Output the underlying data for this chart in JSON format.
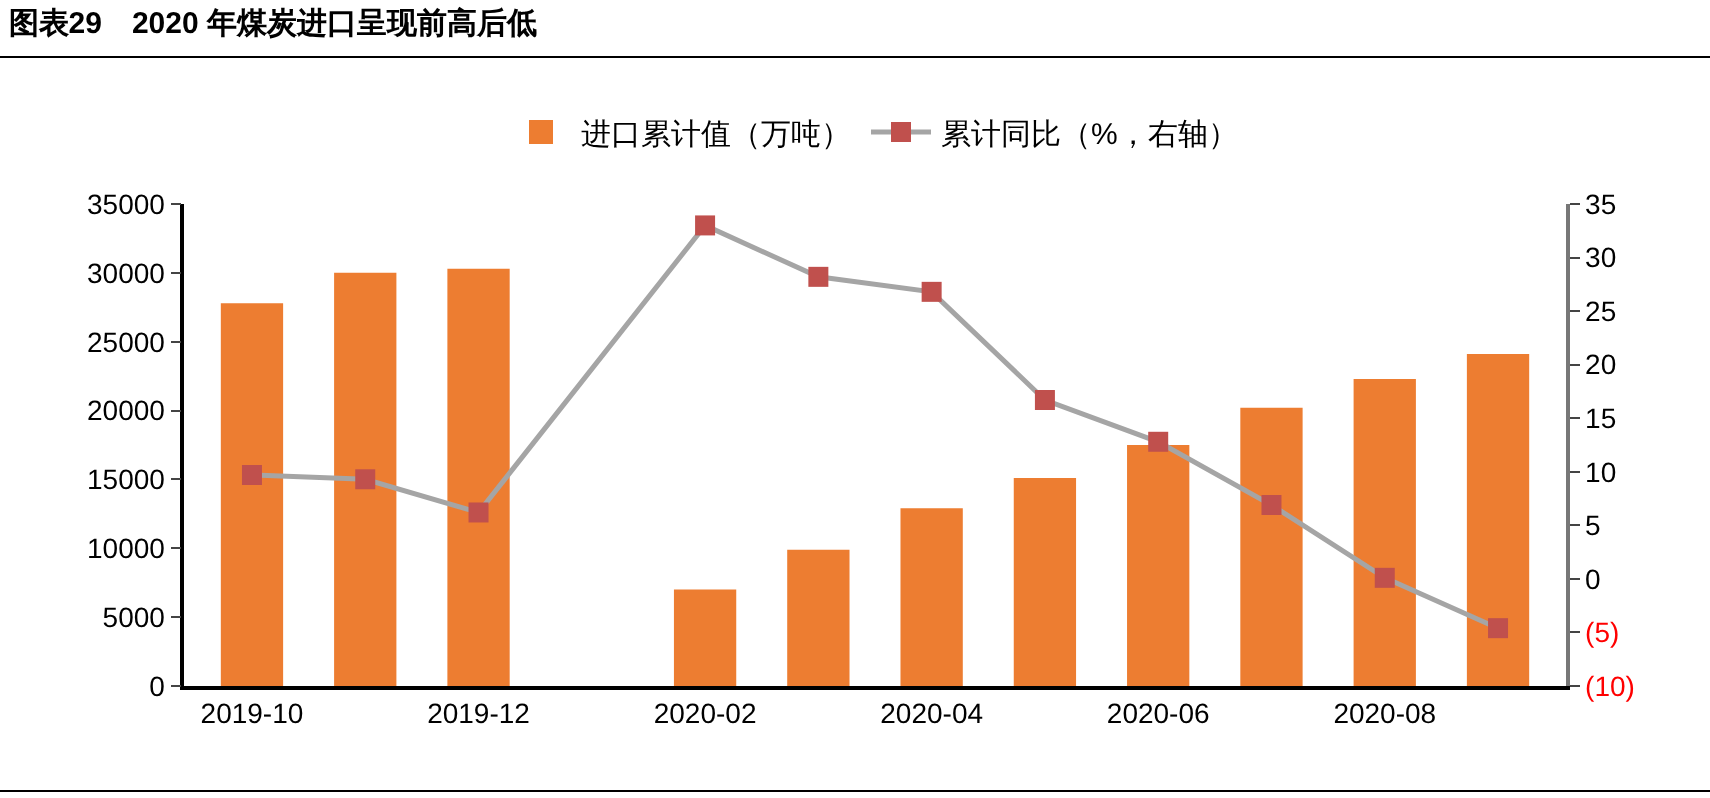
{
  "chart_data": {
    "type": "bar",
    "title": "图表29　2020 年煤炭进口呈现前高后低",
    "categories": [
      "2019-10",
      null,
      "2019-12",
      null,
      "2020-02",
      null,
      "2020-04",
      null,
      "2020-06",
      null,
      "2020-08",
      null
    ],
    "series": [
      {
        "name": "进口累计值（万吨）",
        "color": "#ed7d31",
        "values": [
          27800,
          30000,
          30300,
          null,
          7000,
          9900,
          12900,
          15100,
          17500,
          20200,
          22300,
          24100
        ]
      },
      {
        "name": "累计同比（%，右轴）",
        "type": "line",
        "axis": "y2",
        "color": "#a5a5a5",
        "colors": [
          "#c0504d",
          "#c0504d",
          "#c0504d",
          "#c0504d",
          "#c0504d",
          "#c0504d",
          "#c0504d",
          "#c0504d",
          "#c0504d",
          "#c0504d",
          "#c0504d",
          "#c0504d"
        ],
        "marker": "square",
        "values": [
          9.7,
          9.3,
          6.2,
          null,
          33,
          28.2,
          26.8,
          16.7,
          12.8,
          6.9,
          0.1,
          -4.6
        ]
      }
    ],
    "ylim": [
      0,
      35000
    ],
    "yticks": [
      0,
      5000,
      10000,
      15000,
      20000,
      25000,
      30000,
      35000
    ],
    "y2lim": [
      -10,
      35
    ],
    "y2ticks": [
      {
        "value": -10,
        "label": "(10)"
      },
      {
        "value": -5,
        "label": "(5)"
      },
      0,
      5,
      10,
      15,
      20,
      25,
      30,
      35
    ],
    "legend": "top",
    "grid": false
  }
}
